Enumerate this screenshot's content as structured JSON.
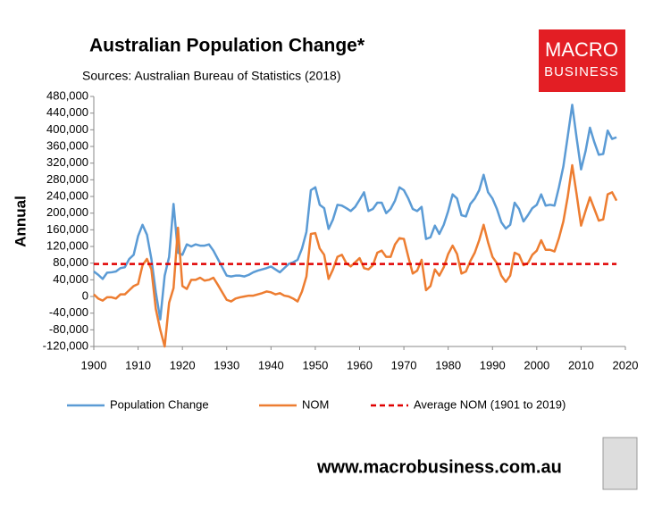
{
  "chart_data": {
    "type": "line",
    "title": "Australian Population Change*",
    "subtitle": "Sources: Australian Bureau of Statistics (2018)",
    "ylabel": "Annual",
    "logo": [
      "MACRO",
      "BUSINESS"
    ],
    "footer": "www.macrobusiness.com.au",
    "x": [
      1900,
      1901,
      1902,
      1903,
      1904,
      1905,
      1906,
      1907,
      1908,
      1909,
      1910,
      1911,
      1912,
      1913,
      1914,
      1915,
      1916,
      1917,
      1918,
      1919,
      1920,
      1921,
      1922,
      1923,
      1924,
      1925,
      1926,
      1927,
      1928,
      1929,
      1930,
      1931,
      1932,
      1933,
      1934,
      1935,
      1936,
      1937,
      1938,
      1939,
      1940,
      1941,
      1942,
      1943,
      1944,
      1945,
      1946,
      1947,
      1948,
      1949,
      1950,
      1951,
      1952,
      1953,
      1954,
      1955,
      1956,
      1957,
      1958,
      1959,
      1960,
      1961,
      1962,
      1963,
      1964,
      1965,
      1966,
      1967,
      1968,
      1969,
      1970,
      1971,
      1972,
      1973,
      1974,
      1975,
      1976,
      1977,
      1978,
      1979,
      1980,
      1981,
      1982,
      1983,
      1984,
      1985,
      1986,
      1987,
      1988,
      1989,
      1990,
      1991,
      1992,
      1993,
      1994,
      1995,
      1996,
      1997,
      1998,
      1999,
      2000,
      2001,
      2002,
      2003,
      2004,
      2005,
      2006,
      2007,
      2008,
      2009,
      2010,
      2011,
      2012,
      2013,
      2014,
      2015,
      2016,
      2017,
      2018
    ],
    "series": [
      {
        "name": "Population Change",
        "color": "#5b9bd5",
        "values": [
          60000,
          52000,
          42000,
          57000,
          58000,
          60000,
          68000,
          70000,
          90000,
          100000,
          145000,
          172000,
          148000,
          90000,
          10000,
          -55000,
          50000,
          95000,
          222000,
          105000,
          100000,
          125000,
          120000,
          125000,
          122000,
          122000,
          125000,
          110000,
          90000,
          70000,
          50000,
          48000,
          50000,
          50000,
          48000,
          52000,
          58000,
          62000,
          65000,
          68000,
          72000,
          65000,
          58000,
          68000,
          78000,
          82000,
          88000,
          115000,
          155000,
          255000,
          262000,
          220000,
          212000,
          162000,
          185000,
          220000,
          218000,
          212000,
          205000,
          215000,
          232000,
          250000,
          205000,
          210000,
          225000,
          225000,
          200000,
          210000,
          230000,
          262000,
          255000,
          235000,
          210000,
          205000,
          215000,
          138000,
          142000,
          170000,
          150000,
          172000,
          205000,
          245000,
          235000,
          195000,
          192000,
          222000,
          235000,
          255000,
          292000,
          250000,
          235000,
          210000,
          178000,
          163000,
          172000,
          225000,
          210000,
          180000,
          195000,
          212000,
          220000,
          245000,
          218000,
          220000,
          218000,
          262000,
          312000,
          385000,
          460000,
          380000,
          305000,
          348000,
          405000,
          370000,
          340000,
          342000,
          398000,
          378000,
          382000
        ]
      },
      {
        "name": "NOM",
        "color": "#ed7d31",
        "values": [
          5000,
          -5000,
          -10000,
          -2000,
          -2000,
          -5000,
          5000,
          5000,
          15000,
          25000,
          30000,
          75000,
          90000,
          65000,
          -30000,
          -80000,
          -120000,
          -15000,
          20000,
          165000,
          25000,
          18000,
          40000,
          40000,
          45000,
          38000,
          40000,
          45000,
          28000,
          10000,
          -8000,
          -12000,
          -5000,
          -2000,
          0,
          2000,
          2000,
          5000,
          8000,
          12000,
          10000,
          5000,
          8000,
          2000,
          0,
          -5000,
          -12000,
          12000,
          48000,
          150000,
          152000,
          115000,
          100000,
          42000,
          65000,
          95000,
          100000,
          80000,
          72000,
          82000,
          92000,
          68000,
          65000,
          75000,
          105000,
          110000,
          95000,
          95000,
          125000,
          140000,
          138000,
          95000,
          55000,
          62000,
          88000,
          15000,
          25000,
          65000,
          50000,
          70000,
          102000,
          122000,
          102000,
          55000,
          60000,
          85000,
          105000,
          135000,
          172000,
          130000,
          95000,
          80000,
          50000,
          35000,
          50000,
          105000,
          100000,
          75000,
          80000,
          100000,
          110000,
          135000,
          112000,
          112000,
          108000,
          140000,
          180000,
          240000,
          315000,
          245000,
          170000,
          205000,
          238000,
          210000,
          182000,
          185000,
          245000,
          250000,
          230000
        ]
      }
    ],
    "reference_line": {
      "name": "Average NOM (1901 to 2019)",
      "color": "#e00000",
      "value": 78000
    },
    "xlim": [
      1900,
      2020
    ],
    "xticks": [
      1900,
      1910,
      1920,
      1930,
      1940,
      1950,
      1960,
      1970,
      1980,
      1990,
      2000,
      2010,
      2020
    ],
    "ylim": [
      -120000,
      480000
    ],
    "yticks": [
      {
        "value": -120000,
        "label": "-120,000"
      },
      {
        "value": -80000,
        "label": "-80,000"
      },
      {
        "value": -40000,
        "label": "-40,000"
      },
      0,
      {
        "value": 40000,
        "label": "40,000"
      },
      {
        "value": 80000,
        "label": "80,000"
      },
      {
        "value": 120000,
        "label": "120,000"
      },
      {
        "value": 160000,
        "label": "160,000"
      },
      {
        "value": 200000,
        "label": "200,000"
      },
      {
        "value": 240000,
        "label": "240,000"
      },
      {
        "value": 280000,
        "label": "280,000"
      },
      {
        "value": 320000,
        "label": "320,000"
      },
      {
        "value": 360000,
        "label": "360,000"
      },
      {
        "value": 400000,
        "label": "400,000"
      },
      {
        "value": 440000,
        "label": "440,000"
      },
      {
        "value": 480000,
        "label": "480,000"
      }
    ],
    "grid": false
  }
}
